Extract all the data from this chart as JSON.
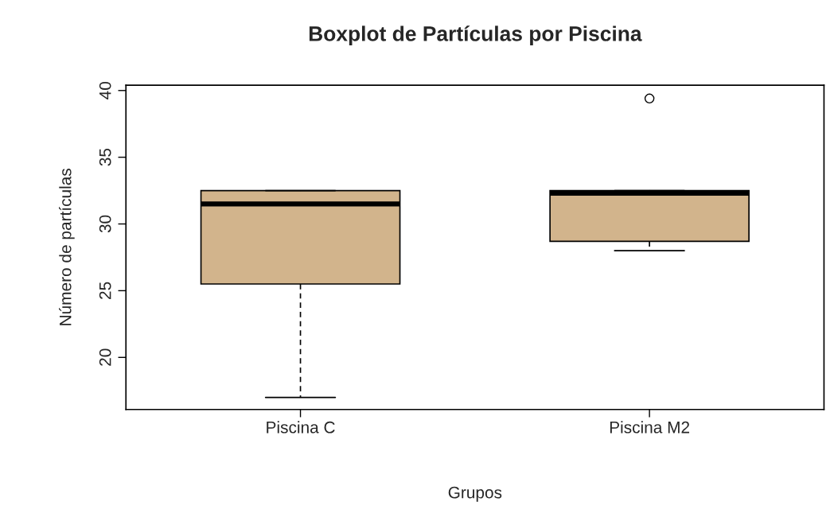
{
  "chart_data": {
    "type": "box",
    "title": "Boxplot de Partículas por Piscina",
    "xlabel": "Grupos",
    "ylabel": "Número de partículas",
    "categories": [
      "Piscina C",
      "Piscina M2"
    ],
    "series": [
      {
        "color": "#d2b48c",
        "boxes": [
          {
            "low": 17,
            "q1": 25.5,
            "median": 31.5,
            "q3": 32.5,
            "high": 32.5
          },
          {
            "low": 28,
            "q1": 28.7,
            "median": 32.3,
            "q3": 32.5,
            "high": 32.5,
            "outliers": [
              39.4
            ]
          }
        ]
      }
    ],
    "ylim": [
      16.1,
      40.4
    ],
    "yticks": [
      20,
      25,
      30,
      35,
      40
    ],
    "grid": false
  }
}
